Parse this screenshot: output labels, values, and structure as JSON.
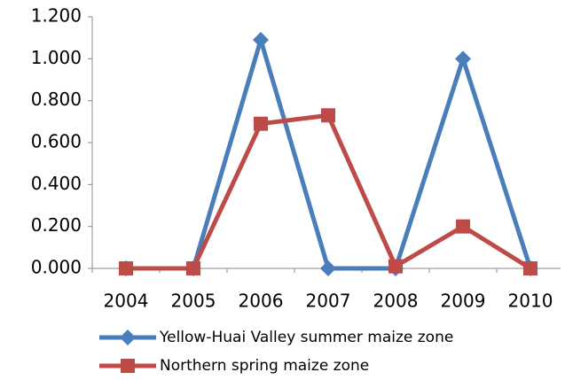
{
  "chart_data": {
    "type": "line",
    "categories": [
      "2004",
      "2005",
      "2006",
      "2007",
      "2008",
      "2009",
      "2010"
    ],
    "series": [
      {
        "name": "Yellow-Huai Valley summer maize zone",
        "color": "#4a7ebb",
        "marker": "diamond",
        "values": [
          0,
          0,
          1.09,
          0,
          0,
          1.0,
          0
        ]
      },
      {
        "name": "Northern spring maize zone",
        "color": "#be4b48",
        "marker": "square",
        "values": [
          0,
          0,
          0.69,
          0.73,
          0.01,
          0.2,
          0
        ]
      }
    ],
    "ylim": [
      0,
      1.2
    ],
    "yticks": [
      {
        "value": 0,
        "label": "0.000"
      },
      {
        "value": 0.2,
        "label": "0.200"
      },
      {
        "value": 0.4,
        "label": "0.400"
      },
      {
        "value": 0.6,
        "label": "0.600"
      },
      {
        "value": 0.8,
        "label": "0.800"
      },
      {
        "value": 1.0,
        "label": "1.000"
      },
      {
        "value": 1.2,
        "label": "1.200"
      }
    ],
    "grid": false,
    "legend": "bottom"
  }
}
